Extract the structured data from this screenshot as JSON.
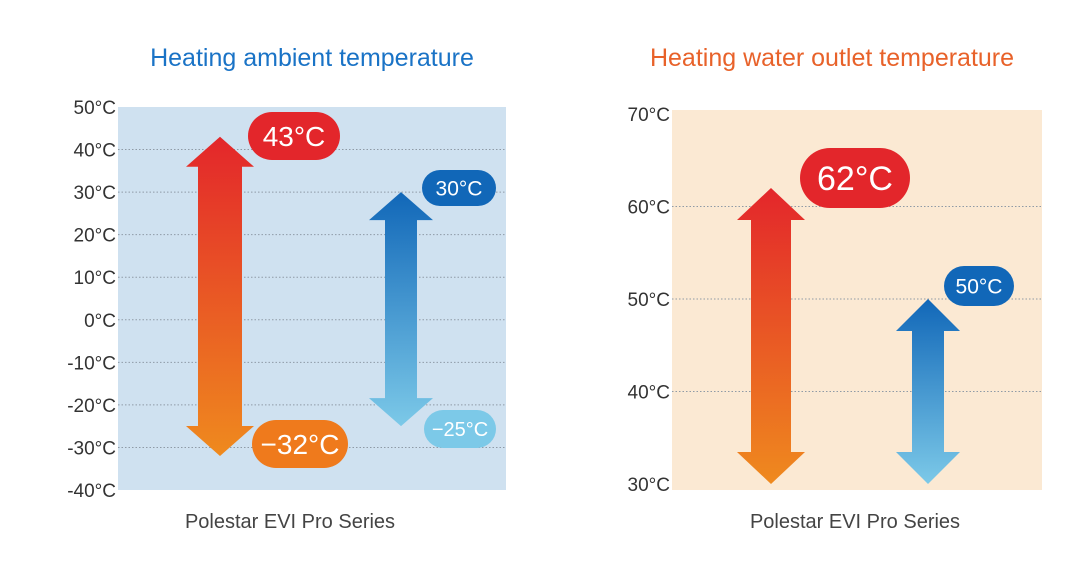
{
  "chart_data": [
    {
      "type": "range",
      "title": "Heating ambient temperature",
      "caption": "Polestar EVI Pro Series",
      "unit": "°C",
      "ylim": [
        -40,
        50
      ],
      "yticks": [
        "50°C",
        "40°C",
        "30°C",
        "20°C",
        "10°C",
        "0°C",
        "-10°C",
        "-20°C",
        "-30°C",
        "-40°C"
      ],
      "ytick_values": [
        50,
        40,
        30,
        20,
        10,
        0,
        -10,
        -20,
        -30,
        -40
      ],
      "grid": true,
      "background_color": "#cfe1f0",
      "title_color": "#1a73c6",
      "series": [
        {
          "min": -32,
          "max": 43,
          "min_label": "−32°C",
          "max_label": "43°C",
          "color_top": "#e3262b",
          "color_bottom": "#ef8a1e",
          "max_badge_color": "#e3262b",
          "min_badge_color": "#ef7a1c"
        },
        {
          "min": -25,
          "max": 30,
          "min_label": "−25°C",
          "max_label": "30°C",
          "color_top": "#1167b8",
          "color_bottom": "#7cc9e8",
          "max_badge_color": "#1167b8",
          "min_badge_color": "#7cc9e8"
        }
      ]
    },
    {
      "type": "range",
      "title": "Heating water outlet temperature",
      "caption": "Polestar EVI Pro Series",
      "unit": "°C",
      "ylim": [
        30,
        70
      ],
      "yticks": [
        "70°C",
        "60°C",
        "50°C",
        "40°C",
        "30°C"
      ],
      "ytick_values": [
        70,
        60,
        50,
        40,
        30
      ],
      "grid": true,
      "background_color": "#fbe9d3",
      "title_color": "#e8622a",
      "series": [
        {
          "min": 30,
          "max": 62,
          "min_label": "",
          "max_label": "62°C",
          "color_top": "#e3262b",
          "color_bottom": "#ef8a1e",
          "max_badge_color": "#e3262b",
          "min_badge_color": ""
        },
        {
          "min": 30,
          "max": 50,
          "min_label": "",
          "max_label": "50°C",
          "color_top": "#1167b8",
          "color_bottom": "#7cc9e8",
          "max_badge_color": "#1167b8",
          "min_badge_color": ""
        }
      ]
    }
  ]
}
